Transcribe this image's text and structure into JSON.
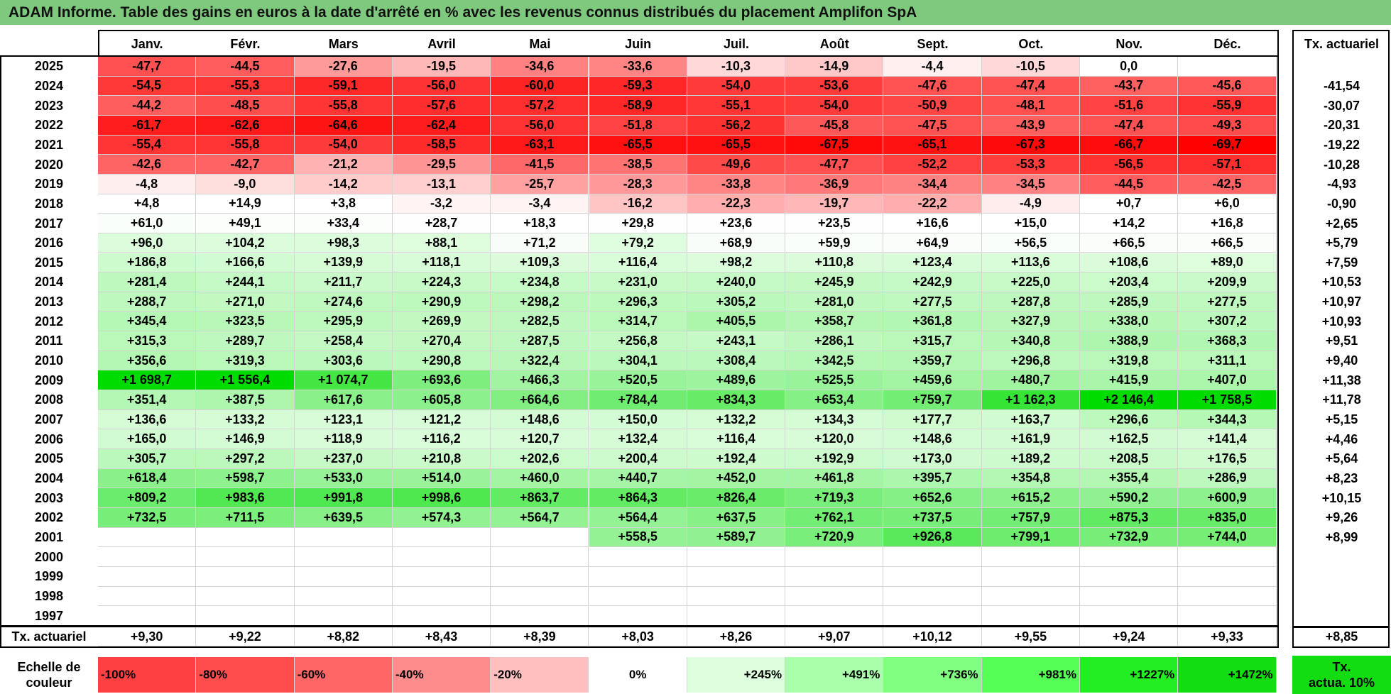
{
  "title": "ADAM Informe. Table des gains en euros à la date d'arrêté en % avec les revenus connus distribués du placement Amplifon SpA",
  "months": [
    "Janv.",
    "Févr.",
    "Mars",
    "Avril",
    "Mai",
    "Juin",
    "Juil.",
    "Août",
    "Sept.",
    "Oct.",
    "Nov.",
    "Déc."
  ],
  "tx_header": "Tx. actuariel",
  "rows": [
    {
      "year": "2025",
      "cells": [
        "-47,7",
        "-44,5",
        "-27,6",
        "-19,5",
        "-34,6",
        "-33,6",
        "-10,3",
        "-14,9",
        "-4,4",
        "-10,5",
        "0,0",
        ""
      ],
      "tx": ""
    },
    {
      "year": "2024",
      "cells": [
        "-54,5",
        "-55,3",
        "-59,1",
        "-56,0",
        "-60,0",
        "-59,3",
        "-54,0",
        "-53,6",
        "-47,6",
        "-47,4",
        "-43,7",
        "-45,6"
      ],
      "tx": "-41,54"
    },
    {
      "year": "2023",
      "cells": [
        "-44,2",
        "-48,5",
        "-55,8",
        "-57,6",
        "-57,2",
        "-58,9",
        "-55,1",
        "-54,0",
        "-50,9",
        "-48,1",
        "-51,6",
        "-55,9"
      ],
      "tx": "-30,07"
    },
    {
      "year": "2022",
      "cells": [
        "-61,7",
        "-62,6",
        "-64,6",
        "-62,4",
        "-56,0",
        "-51,8",
        "-56,2",
        "-45,8",
        "-47,5",
        "-43,9",
        "-47,4",
        "-49,3"
      ],
      "tx": "-20,31"
    },
    {
      "year": "2021",
      "cells": [
        "-55,4",
        "-55,8",
        "-54,0",
        "-58,5",
        "-63,1",
        "-65,5",
        "-65,5",
        "-67,5",
        "-65,1",
        "-67,3",
        "-66,7",
        "-69,7"
      ],
      "tx": "-19,22"
    },
    {
      "year": "2020",
      "cells": [
        "-42,6",
        "-42,7",
        "-21,2",
        "-29,5",
        "-41,5",
        "-38,5",
        "-49,6",
        "-47,7",
        "-52,2",
        "-53,3",
        "-56,5",
        "-57,1"
      ],
      "tx": "-10,28"
    },
    {
      "year": "2019",
      "cells": [
        "-4,8",
        "-9,0",
        "-14,2",
        "-13,1",
        "-25,7",
        "-28,3",
        "-33,8",
        "-36,9",
        "-34,4",
        "-34,5",
        "-44,5",
        "-42,5"
      ],
      "tx": "-4,93"
    },
    {
      "year": "2018",
      "cells": [
        "+4,8",
        "+14,9",
        "+3,8",
        "-3,2",
        "-3,4",
        "-16,2",
        "-22,3",
        "-19,7",
        "-22,2",
        "-4,9",
        "+0,7",
        "+6,0"
      ],
      "tx": "-0,90"
    },
    {
      "year": "2017",
      "cells": [
        "+61,0",
        "+49,1",
        "+33,4",
        "+28,7",
        "+18,3",
        "+29,8",
        "+23,6",
        "+23,5",
        "+16,6",
        "+15,0",
        "+14,2",
        "+16,8"
      ],
      "tx": "+2,65"
    },
    {
      "year": "2016",
      "cells": [
        "+96,0",
        "+104,2",
        "+98,3",
        "+88,1",
        "+71,2",
        "+79,2",
        "+68,9",
        "+59,9",
        "+64,9",
        "+56,5",
        "+66,5",
        "+66,5"
      ],
      "tx": "+5,79"
    },
    {
      "year": "2015",
      "cells": [
        "+186,8",
        "+166,6",
        "+139,9",
        "+118,1",
        "+109,3",
        "+116,4",
        "+98,2",
        "+110,8",
        "+123,4",
        "+113,6",
        "+108,6",
        "+89,0"
      ],
      "tx": "+7,59"
    },
    {
      "year": "2014",
      "cells": [
        "+281,4",
        "+244,1",
        "+211,7",
        "+224,3",
        "+234,8",
        "+231,0",
        "+240,0",
        "+245,9",
        "+242,9",
        "+225,0",
        "+203,4",
        "+209,9"
      ],
      "tx": "+10,53"
    },
    {
      "year": "2013",
      "cells": [
        "+288,7",
        "+271,0",
        "+274,6",
        "+290,9",
        "+298,2",
        "+296,3",
        "+305,2",
        "+281,0",
        "+277,5",
        "+287,8",
        "+285,9",
        "+277,5"
      ],
      "tx": "+10,97"
    },
    {
      "year": "2012",
      "cells": [
        "+345,4",
        "+323,5",
        "+295,9",
        "+269,9",
        "+282,5",
        "+314,7",
        "+405,5",
        "+358,7",
        "+361,8",
        "+327,9",
        "+338,0",
        "+307,2"
      ],
      "tx": "+10,93"
    },
    {
      "year": "2011",
      "cells": [
        "+315,3",
        "+289,7",
        "+258,4",
        "+270,4",
        "+287,5",
        "+256,8",
        "+243,1",
        "+286,1",
        "+315,7",
        "+340,8",
        "+388,9",
        "+368,3"
      ],
      "tx": "+9,51"
    },
    {
      "year": "2010",
      "cells": [
        "+356,6",
        "+319,3",
        "+303,6",
        "+290,8",
        "+322,4",
        "+304,1",
        "+308,4",
        "+342,5",
        "+359,7",
        "+296,8",
        "+319,8",
        "+311,1"
      ],
      "tx": "+9,40"
    },
    {
      "year": "2009",
      "cells": [
        "+1 698,7",
        "+1 556,4",
        "+1 074,7",
        "+693,6",
        "+466,3",
        "+520,5",
        "+489,6",
        "+525,5",
        "+459,6",
        "+480,7",
        "+415,9",
        "+407,0"
      ],
      "tx": "+11,38"
    },
    {
      "year": "2008",
      "cells": [
        "+351,4",
        "+387,5",
        "+617,6",
        "+605,8",
        "+664,6",
        "+784,4",
        "+834,3",
        "+653,4",
        "+759,7",
        "+1 162,3",
        "+2 146,4",
        "+1 758,5"
      ],
      "tx": "+11,78"
    },
    {
      "year": "2007",
      "cells": [
        "+136,6",
        "+133,2",
        "+123,1",
        "+121,2",
        "+148,6",
        "+150,0",
        "+132,2",
        "+134,3",
        "+177,7",
        "+163,7",
        "+296,6",
        "+344,3"
      ],
      "tx": "+5,15"
    },
    {
      "year": "2006",
      "cells": [
        "+165,0",
        "+146,9",
        "+118,9",
        "+116,2",
        "+120,7",
        "+132,4",
        "+116,4",
        "+120,0",
        "+148,6",
        "+161,9",
        "+162,5",
        "+141,4"
      ],
      "tx": "+4,46"
    },
    {
      "year": "2005",
      "cells": [
        "+305,7",
        "+297,2",
        "+237,0",
        "+210,8",
        "+202,6",
        "+200,4",
        "+192,4",
        "+192,9",
        "+173,0",
        "+189,2",
        "+208,5",
        "+176,5"
      ],
      "tx": "+5,64"
    },
    {
      "year": "2004",
      "cells": [
        "+618,4",
        "+598,7",
        "+533,0",
        "+514,0",
        "+460,0",
        "+440,7",
        "+452,0",
        "+461,8",
        "+395,7",
        "+354,8",
        "+355,4",
        "+286,9"
      ],
      "tx": "+8,23"
    },
    {
      "year": "2003",
      "cells": [
        "+809,2",
        "+983,6",
        "+991,8",
        "+998,6",
        "+863,7",
        "+864,3",
        "+826,4",
        "+719,3",
        "+652,6",
        "+615,2",
        "+590,2",
        "+600,9"
      ],
      "tx": "+10,15"
    },
    {
      "year": "2002",
      "cells": [
        "+732,5",
        "+711,5",
        "+639,5",
        "+574,3",
        "+564,7",
        "+564,4",
        "+637,5",
        "+762,1",
        "+737,5",
        "+757,9",
        "+875,3",
        "+835,0"
      ],
      "tx": "+9,26"
    },
    {
      "year": "2001",
      "cells": [
        "",
        "",
        "",
        "",
        "",
        "+558,5",
        "+589,7",
        "+720,9",
        "+926,8",
        "+799,1",
        "+732,9",
        "+744,0"
      ],
      "tx": "+8,99"
    },
    {
      "year": "2000",
      "cells": [
        "",
        "",
        "",
        "",
        "",
        "",
        "",
        "",
        "",
        "",
        "",
        ""
      ],
      "tx": ""
    },
    {
      "year": "1999",
      "cells": [
        "",
        "",
        "",
        "",
        "",
        "",
        "",
        "",
        "",
        "",
        "",
        ""
      ],
      "tx": ""
    },
    {
      "year": "1998",
      "cells": [
        "",
        "",
        "",
        "",
        "",
        "",
        "",
        "",
        "",
        "",
        "",
        ""
      ],
      "tx": ""
    },
    {
      "year": "1997",
      "cells": [
        "",
        "",
        "",
        "",
        "",
        "",
        "",
        "",
        "",
        "",
        "",
        ""
      ],
      "tx": ""
    }
  ],
  "tx_row": {
    "label": "Tx. actuariel",
    "cells": [
      "+9,30",
      "+9,22",
      "+8,82",
      "+8,43",
      "+8,39",
      "+8,03",
      "+8,26",
      "+9,07",
      "+10,12",
      "+9,55",
      "+9,24",
      "+9,33"
    ],
    "tx": "+8,85"
  },
  "scale": {
    "label_line1": "Echelle de",
    "label_line2": "couleur",
    "items": [
      {
        "label": "-100%",
        "color": "#ff4040",
        "align": "l"
      },
      {
        "label": "-80%",
        "color": "#ff4d4d",
        "align": "l"
      },
      {
        "label": "-60%",
        "color": "#ff6666",
        "align": "l"
      },
      {
        "label": "-40%",
        "color": "#ff8c8c",
        "align": "l"
      },
      {
        "label": "-20%",
        "color": "#ffbfbf",
        "align": "l"
      },
      {
        "label": "0%",
        "color": "#ffffff",
        "align": "c"
      },
      {
        "label": "+245%",
        "color": "#ddffdd",
        "align": "r"
      },
      {
        "label": "+491%",
        "color": "#aaffaa",
        "align": "r"
      },
      {
        "label": "+736%",
        "color": "#80ff80",
        "align": "r"
      },
      {
        "label": "+981%",
        "color": "#55ff55",
        "align": "r"
      },
      {
        "label": "+1227%",
        "color": "#22ee22",
        "align": "r"
      },
      {
        "label": "+1472%",
        "color": "#11dd11",
        "align": "r"
      }
    ],
    "tx_line1": "Tx.",
    "tx_line2": "actua. 10%",
    "tx_color": "#11dd11"
  }
}
